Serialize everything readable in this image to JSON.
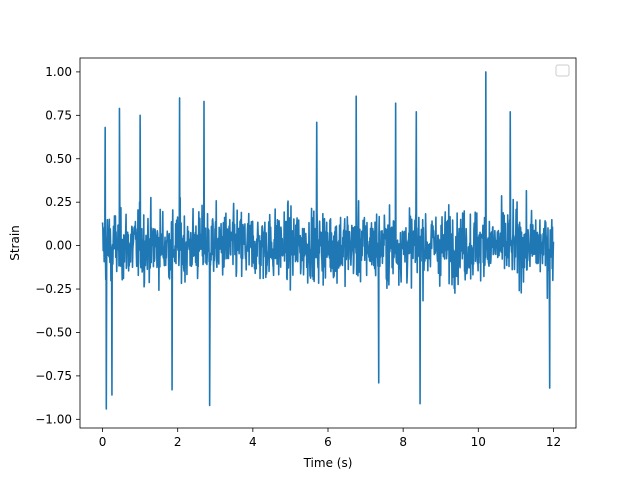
{
  "chart_data": {
    "type": "line",
    "title": "",
    "xlabel": "Time (s)",
    "ylabel": "Strain",
    "xlim": [
      -0.6,
      12.6
    ],
    "ylim": [
      -1.05,
      1.08
    ],
    "grid": false,
    "legend": {
      "placement": "top-right",
      "entries": []
    },
    "colors": {
      "series": "#1f77b4",
      "axes": "#000000",
      "background": "#ffffff"
    },
    "xticks": [
      {
        "value": 0,
        "label": "0"
      },
      {
        "value": 2,
        "label": "2"
      },
      {
        "value": 4,
        "label": "4"
      },
      {
        "value": 6,
        "label": "6"
      },
      {
        "value": 8,
        "label": "8"
      },
      {
        "value": 10,
        "label": "10"
      },
      {
        "value": 12,
        "label": "12"
      }
    ],
    "yticks": [
      {
        "value": 1.0,
        "label": "1.00"
      },
      {
        "value": 0.75,
        "label": "0.75"
      },
      {
        "value": 0.5,
        "label": "0.50"
      },
      {
        "value": 0.25,
        "label": "0.25"
      },
      {
        "value": 0.0,
        "label": "0.00"
      },
      {
        "value": -0.25,
        "label": "−0.25"
      },
      {
        "value": -0.5,
        "label": "−0.50"
      },
      {
        "value": -0.75,
        "label": "−0.75"
      },
      {
        "value": -1.0,
        "label": "−1.00"
      }
    ],
    "series": [
      {
        "x_range": [
          0,
          12
        ],
        "max": {
          "x": 10.2,
          "y": 1.0
        },
        "min": {
          "x": 0.1,
          "y": -0.94
        },
        "typical_amplitude": 0.5,
        "peaks": [
          {
            "x": 0.07,
            "y": 0.68
          },
          {
            "x": 0.45,
            "y": 0.79
          },
          {
            "x": 1.0,
            "y": 0.75
          },
          {
            "x": 2.05,
            "y": 0.85
          },
          {
            "x": 2.7,
            "y": 0.83
          },
          {
            "x": 5.7,
            "y": 0.71
          },
          {
            "x": 6.75,
            "y": 0.86
          },
          {
            "x": 7.8,
            "y": 0.82
          },
          {
            "x": 8.35,
            "y": 0.77
          },
          {
            "x": 10.2,
            "y": 1.0
          },
          {
            "x": 10.85,
            "y": 0.77
          }
        ],
        "troughs": [
          {
            "x": 0.1,
            "y": -0.94
          },
          {
            "x": 0.25,
            "y": -0.86
          },
          {
            "x": 2.85,
            "y": -0.92
          },
          {
            "x": 1.85,
            "y": -0.83
          },
          {
            "x": 7.35,
            "y": -0.79
          },
          {
            "x": 8.45,
            "y": -0.91
          },
          {
            "x": 11.9,
            "y": -0.82
          }
        ]
      }
    ]
  }
}
